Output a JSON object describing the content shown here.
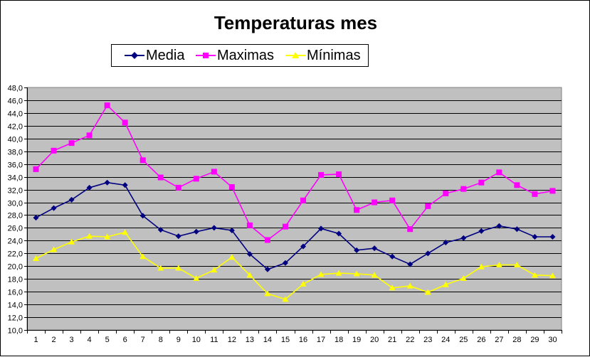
{
  "chart_data": {
    "type": "line",
    "title": "Temperaturas mes",
    "xlabel": "",
    "ylabel": "",
    "categories": [
      "1",
      "2",
      "3",
      "4",
      "5",
      "6",
      "7",
      "8",
      "9",
      "10",
      "11",
      "12",
      "13",
      "14",
      "15",
      "16",
      "17",
      "18",
      "19",
      "20",
      "21",
      "22",
      "23",
      "24",
      "25",
      "26",
      "27",
      "28",
      "29",
      "30"
    ],
    "ylim": [
      10,
      48
    ],
    "ytick_step": 2,
    "ytick_labels": [
      "10,0",
      "12,0",
      "14,0",
      "16,0",
      "18,0",
      "20,0",
      "22,0",
      "24,0",
      "26,0",
      "28,0",
      "30,0",
      "32,0",
      "34,0",
      "36,0",
      "38,0",
      "40,0",
      "42,0",
      "44,0",
      "46,0",
      "48,0"
    ],
    "grid": true,
    "legend_position": "top",
    "plot_background": "#C0C0C0",
    "series": [
      {
        "name": "Media",
        "color": "#000080",
        "marker": "diamond",
        "values": [
          27.6,
          29.1,
          30.4,
          32.3,
          33.1,
          32.7,
          27.9,
          25.7,
          24.7,
          25.4,
          26.0,
          25.6,
          21.9,
          19.5,
          20.5,
          23.1,
          25.9,
          25.1,
          22.5,
          22.8,
          21.5,
          20.3,
          22.0,
          23.7,
          24.4,
          25.5,
          26.3,
          25.8,
          24.6,
          24.6
        ]
      },
      {
        "name": "Maximas",
        "color": "#FF00FF",
        "marker": "square",
        "values": [
          35.2,
          38.1,
          39.3,
          40.5,
          45.2,
          42.5,
          36.6,
          33.9,
          32.3,
          33.7,
          34.8,
          32.4,
          26.4,
          24.1,
          26.2,
          30.3,
          34.3,
          34.4,
          28.8,
          30.0,
          30.3,
          25.8,
          29.4,
          31.4,
          32.1,
          33.1,
          34.7,
          32.7,
          31.3,
          31.8
        ]
      },
      {
        "name": "Mínimas",
        "color": "#FFFF00",
        "marker": "triangle",
        "values": [
          21.2,
          22.6,
          23.8,
          24.7,
          24.6,
          25.3,
          21.5,
          19.7,
          19.7,
          18.1,
          19.4,
          21.4,
          18.6,
          15.7,
          14.8,
          17.2,
          18.7,
          18.9,
          18.8,
          18.6,
          16.6,
          16.9,
          15.9,
          17.1,
          18.1,
          19.9,
          20.2,
          20.2,
          18.6,
          18.5
        ]
      }
    ]
  }
}
